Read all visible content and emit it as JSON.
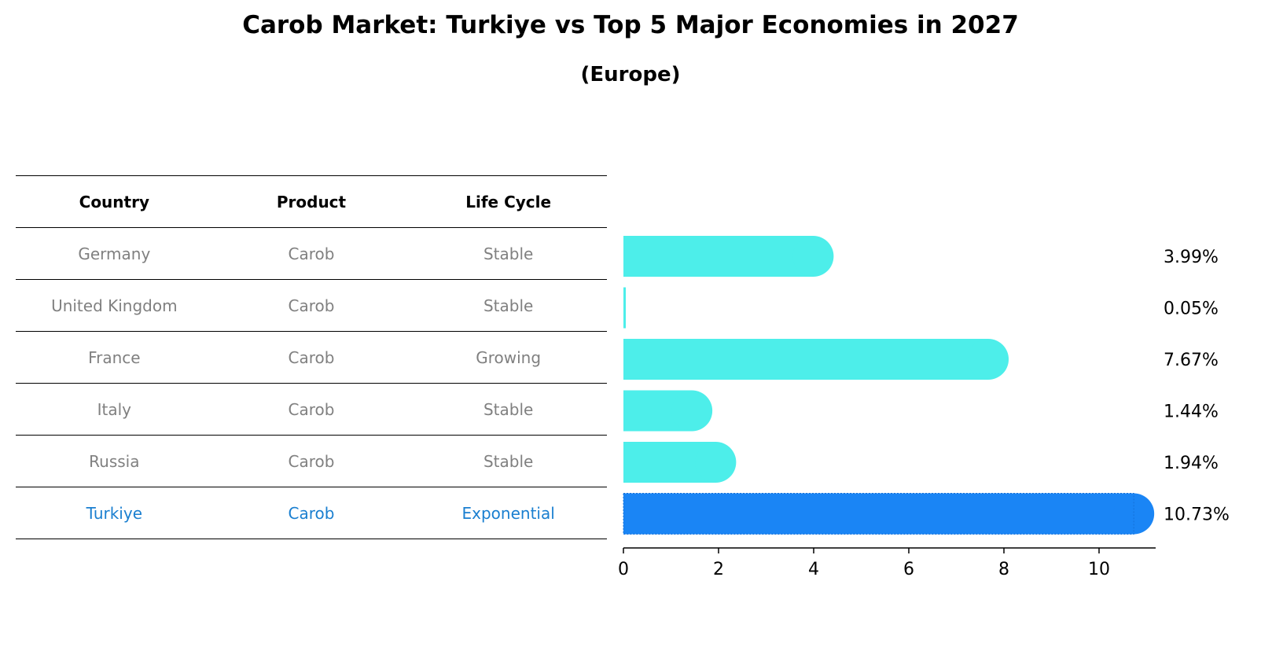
{
  "title": "Carob Market: Turkiye vs Top 5 Major Economies in 2027",
  "subtitle": "(Europe)",
  "table": {
    "headers": [
      "Country",
      "Product",
      "Life Cycle"
    ],
    "rows": [
      [
        "Germany",
        "Carob",
        "Stable"
      ],
      [
        "United Kingdom",
        "Carob",
        "Stable"
      ],
      [
        "France",
        "Carob",
        "Growing"
      ],
      [
        "Italy",
        "Carob",
        "Stable"
      ],
      [
        "Russia",
        "Carob",
        "Stable"
      ],
      [
        "Turkiye",
        "Carob",
        "Exponential"
      ]
    ],
    "highlight_row": 5
  },
  "colors": {
    "bar": "#4deeea",
    "highlight_bar": "#1a85f5",
    "highlight_text": "#1a7fd0",
    "muted_text": "#808080"
  },
  "chart_data": {
    "type": "bar",
    "orientation": "horizontal",
    "categories": [
      "Germany",
      "United Kingdom",
      "France",
      "Italy",
      "Russia",
      "Turkiye"
    ],
    "values": [
      3.99,
      0.05,
      7.67,
      1.44,
      1.94,
      10.73
    ],
    "value_labels": [
      "3.99%",
      "0.05%",
      "7.67%",
      "1.44%",
      "1.94%",
      "10.73%"
    ],
    "highlight": "Turkiye",
    "xlim": [
      0,
      11.25
    ],
    "xticks": [
      0,
      2,
      4,
      6,
      8,
      10
    ],
    "xlabel": "",
    "ylabel": "",
    "grid": false
  }
}
